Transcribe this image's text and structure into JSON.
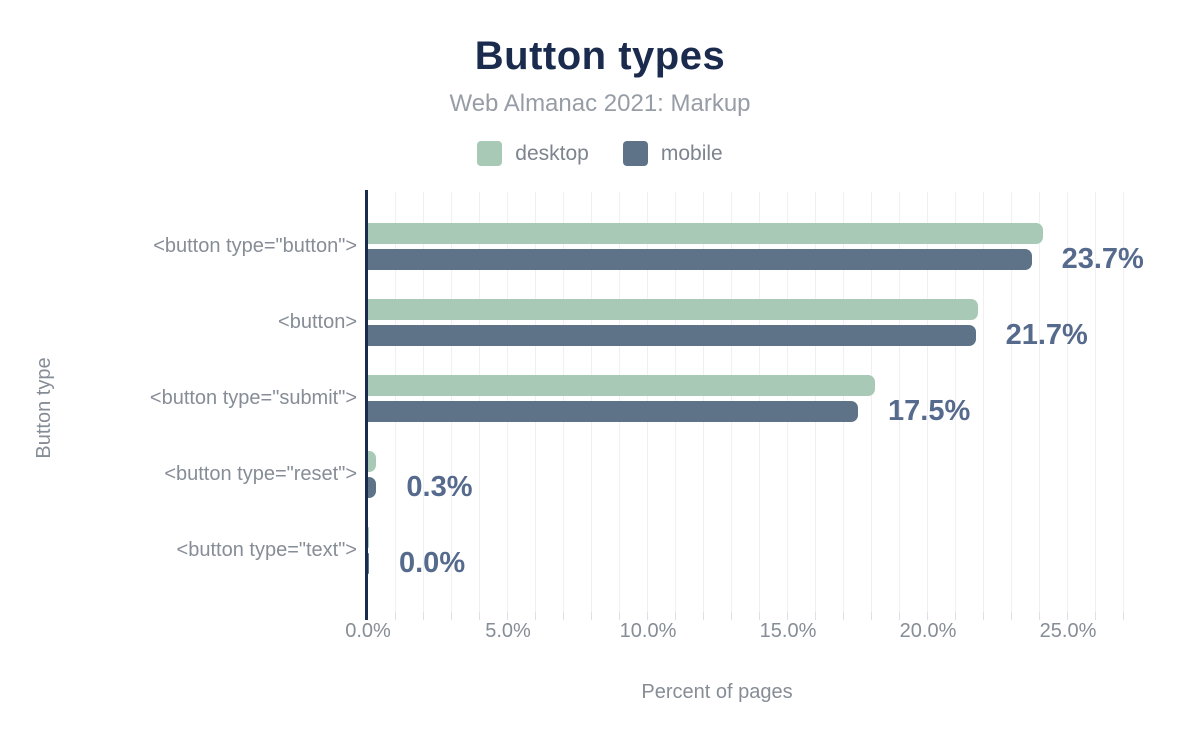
{
  "chart_data": {
    "type": "bar",
    "orientation": "horizontal",
    "title": "Button types",
    "subtitle": "Web Almanac 2021: Markup",
    "xlabel": "Percent of pages",
    "ylabel": "Button type",
    "categories": [
      "<button type=\"button\">",
      "<button>",
      "<button type=\"submit\">",
      "<button type=\"reset\">",
      "<button type=\"text\">"
    ],
    "series": [
      {
        "name": "desktop",
        "color": "#a7c9b6",
        "values": [
          24.1,
          21.8,
          18.1,
          0.3,
          0.0
        ]
      },
      {
        "name": "mobile",
        "color": "#5e7288",
        "values": [
          23.7,
          21.7,
          17.5,
          0.3,
          0.0
        ]
      }
    ],
    "annotations": [
      "23.7%",
      "21.7%",
      "17.5%",
      "0.3%",
      "0.0%"
    ],
    "annotation_series": "mobile",
    "x_ticks": [
      {
        "value": 0,
        "label": "0.0%"
      },
      {
        "value": 5,
        "label": "5.0%"
      },
      {
        "value": 10,
        "label": "10.0%"
      },
      {
        "value": 15,
        "label": "15.0%"
      },
      {
        "value": 20,
        "label": "20.0%"
      },
      {
        "value": 25,
        "label": "25.0%"
      }
    ],
    "xlim": [
      0,
      27.5
    ],
    "grid": {
      "shown": true,
      "minor_interval_percent": 1
    },
    "legend_position": "top"
  },
  "legend": [
    {
      "label": "desktop",
      "color": "#a7c9b6"
    },
    {
      "label": "mobile",
      "color": "#5e7288"
    }
  ],
  "colors": {
    "background": "#ffffff",
    "title": "#1b2b4d",
    "subtitle": "#979da6",
    "axis_text": "#868d96",
    "legend_text": "#7d848e",
    "annotation": "#556a8c",
    "axis_line": "#1b2b4d",
    "gridline": "#eef0f3",
    "minor_tick": "#dde1e6",
    "desktop": "#a7c9b6",
    "mobile": "#5e7288"
  }
}
